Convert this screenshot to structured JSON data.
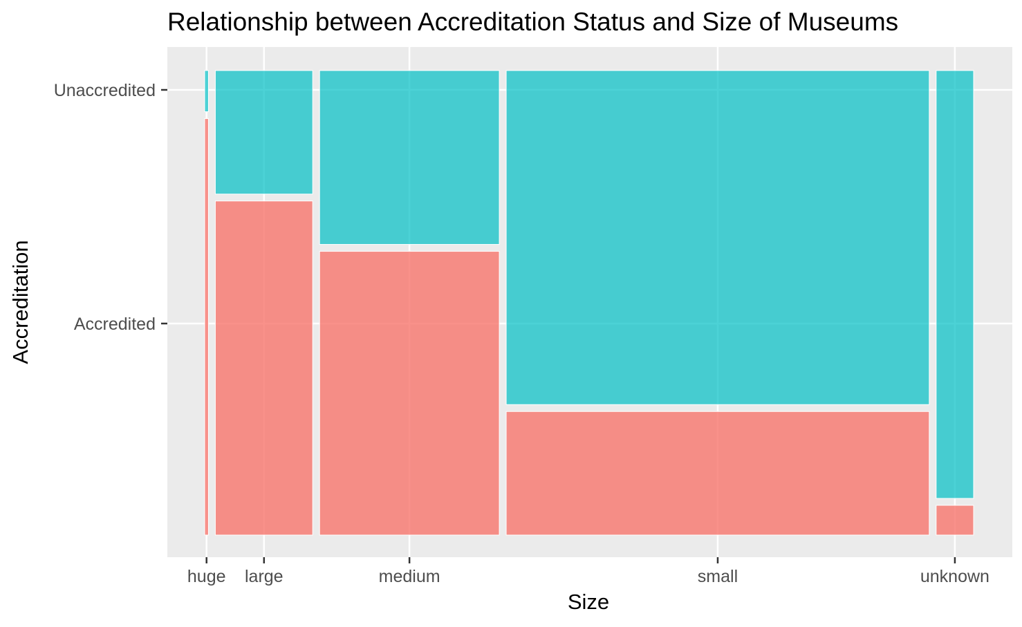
{
  "chart_data": {
    "type": "mosaic",
    "title": "Relationship between Accreditation Status and Size of Museums",
    "xlabel": "Size",
    "ylabel": "Accreditation",
    "x_categories": [
      "huge",
      "large",
      "medium",
      "small",
      "unknown"
    ],
    "y_categories": [
      "Accredited",
      "Unaccredited"
    ],
    "column_widths": [
      0.005,
      0.13,
      0.24,
      0.565,
      0.05
    ],
    "accredited_share": [
      0.91,
      0.73,
      0.62,
      0.27,
      0.065
    ],
    "colors": {
      "Accredited": "#F8766D",
      "Unaccredited": "#00BFC4",
      "panel": "#EBEBEB",
      "grid": "#FFFFFF",
      "tick": "#333333"
    },
    "grid": true,
    "legend": "none"
  }
}
